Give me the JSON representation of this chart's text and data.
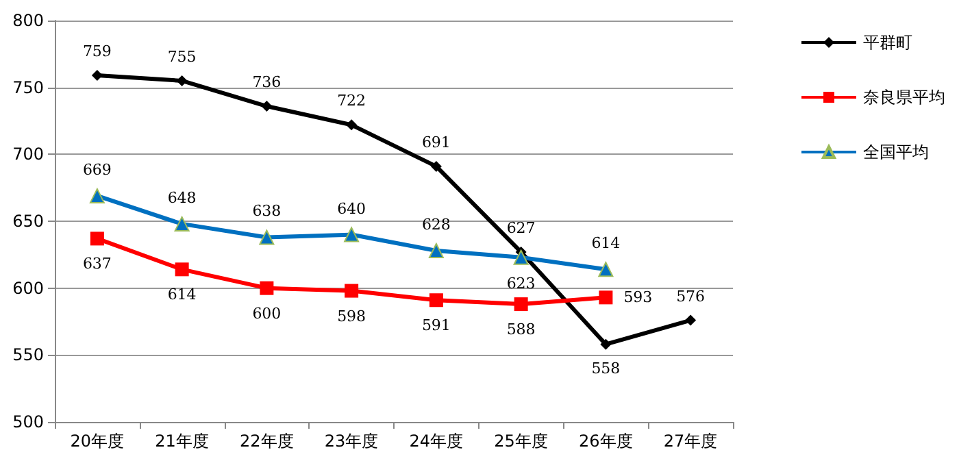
{
  "chart_data": {
    "type": "line",
    "categories": [
      "20年度",
      "21年度",
      "22年度",
      "23年度",
      "24年度",
      "25年度",
      "26年度",
      "27年度"
    ],
    "series": [
      {
        "name": "平群町",
        "color": "#000000",
        "marker": "diamond",
        "values": [
          759,
          755,
          736,
          722,
          691,
          627,
          558,
          576
        ]
      },
      {
        "name": "奈良県平均",
        "color": "#ff0000",
        "marker": "square",
        "values": [
          637,
          614,
          600,
          598,
          591,
          588,
          593,
          null
        ]
      },
      {
        "name": "全国平均",
        "color": "#0070c0",
        "marker": "triangle",
        "values": [
          669,
          648,
          638,
          640,
          628,
          623,
          614,
          null
        ]
      }
    ],
    "ylim": [
      500,
      800
    ],
    "yticks": [
      500,
      550,
      600,
      650,
      700,
      750,
      800
    ],
    "grid": "y",
    "legend": "right",
    "data_labels": true
  }
}
